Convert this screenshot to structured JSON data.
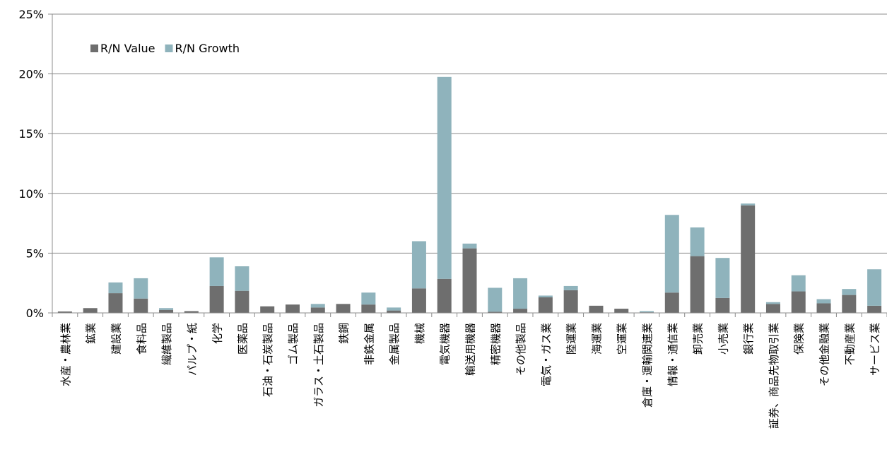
{
  "chart_data": {
    "type": "bar",
    "stacked": true,
    "title": "",
    "xlabel": "",
    "ylabel": "",
    "ylim": [
      0,
      0.25
    ],
    "yticks": [
      "0%",
      "5%",
      "10%",
      "15%",
      "20%",
      "25%"
    ],
    "grid": true,
    "legend": "top-left",
    "categories": [
      "水産・農林業",
      "鉱業",
      "建設業",
      "食料品",
      "繊維製品",
      "パルプ・紙",
      "化学",
      "医薬品",
      "石油・石炭製品",
      "ゴム製品",
      "ガラス・土石製品",
      "鉄鋼",
      "非鉄金属",
      "金属製品",
      "機械",
      "電気機器",
      "輸送用機器",
      "精密機器",
      "その他製品",
      "電気・ガス業",
      "陸運業",
      "海運業",
      "空運業",
      "倉庫・運輸関連業",
      "情報・通信業",
      "卸売業",
      "小売業",
      "銀行業",
      "証券、商品先物取引業",
      "保険業",
      "その他金融業",
      "不動産業",
      "サービス業"
    ],
    "series": [
      {
        "name": "R/N Value",
        "color": "#6e6e6e",
        "values": [
          0.0012,
          0.004,
          0.0165,
          0.012,
          0.0025,
          0.0015,
          0.0225,
          0.0185,
          0.0055,
          0.007,
          0.0045,
          0.0075,
          0.007,
          0.002,
          0.0205,
          0.0285,
          0.054,
          0.001,
          0.0035,
          0.013,
          0.019,
          0.006,
          0.0035,
          0.0005,
          0.017,
          0.0475,
          0.0125,
          0.09,
          0.0075,
          0.018,
          0.008,
          0.015,
          0.006
        ]
      },
      {
        "name": "R/N Growth",
        "color": "#8fb3bc",
        "values": [
          0.0,
          0.0,
          0.009,
          0.017,
          0.0015,
          0.0,
          0.024,
          0.0205,
          0.0,
          0.0,
          0.003,
          0.0,
          0.01,
          0.0025,
          0.0395,
          0.169,
          0.004,
          0.02,
          0.0255,
          0.0015,
          0.0035,
          0.0,
          0.0,
          0.001,
          0.065,
          0.024,
          0.0335,
          0.0015,
          0.0015,
          0.0135,
          0.0035,
          0.005,
          0.0305
        ]
      }
    ]
  }
}
